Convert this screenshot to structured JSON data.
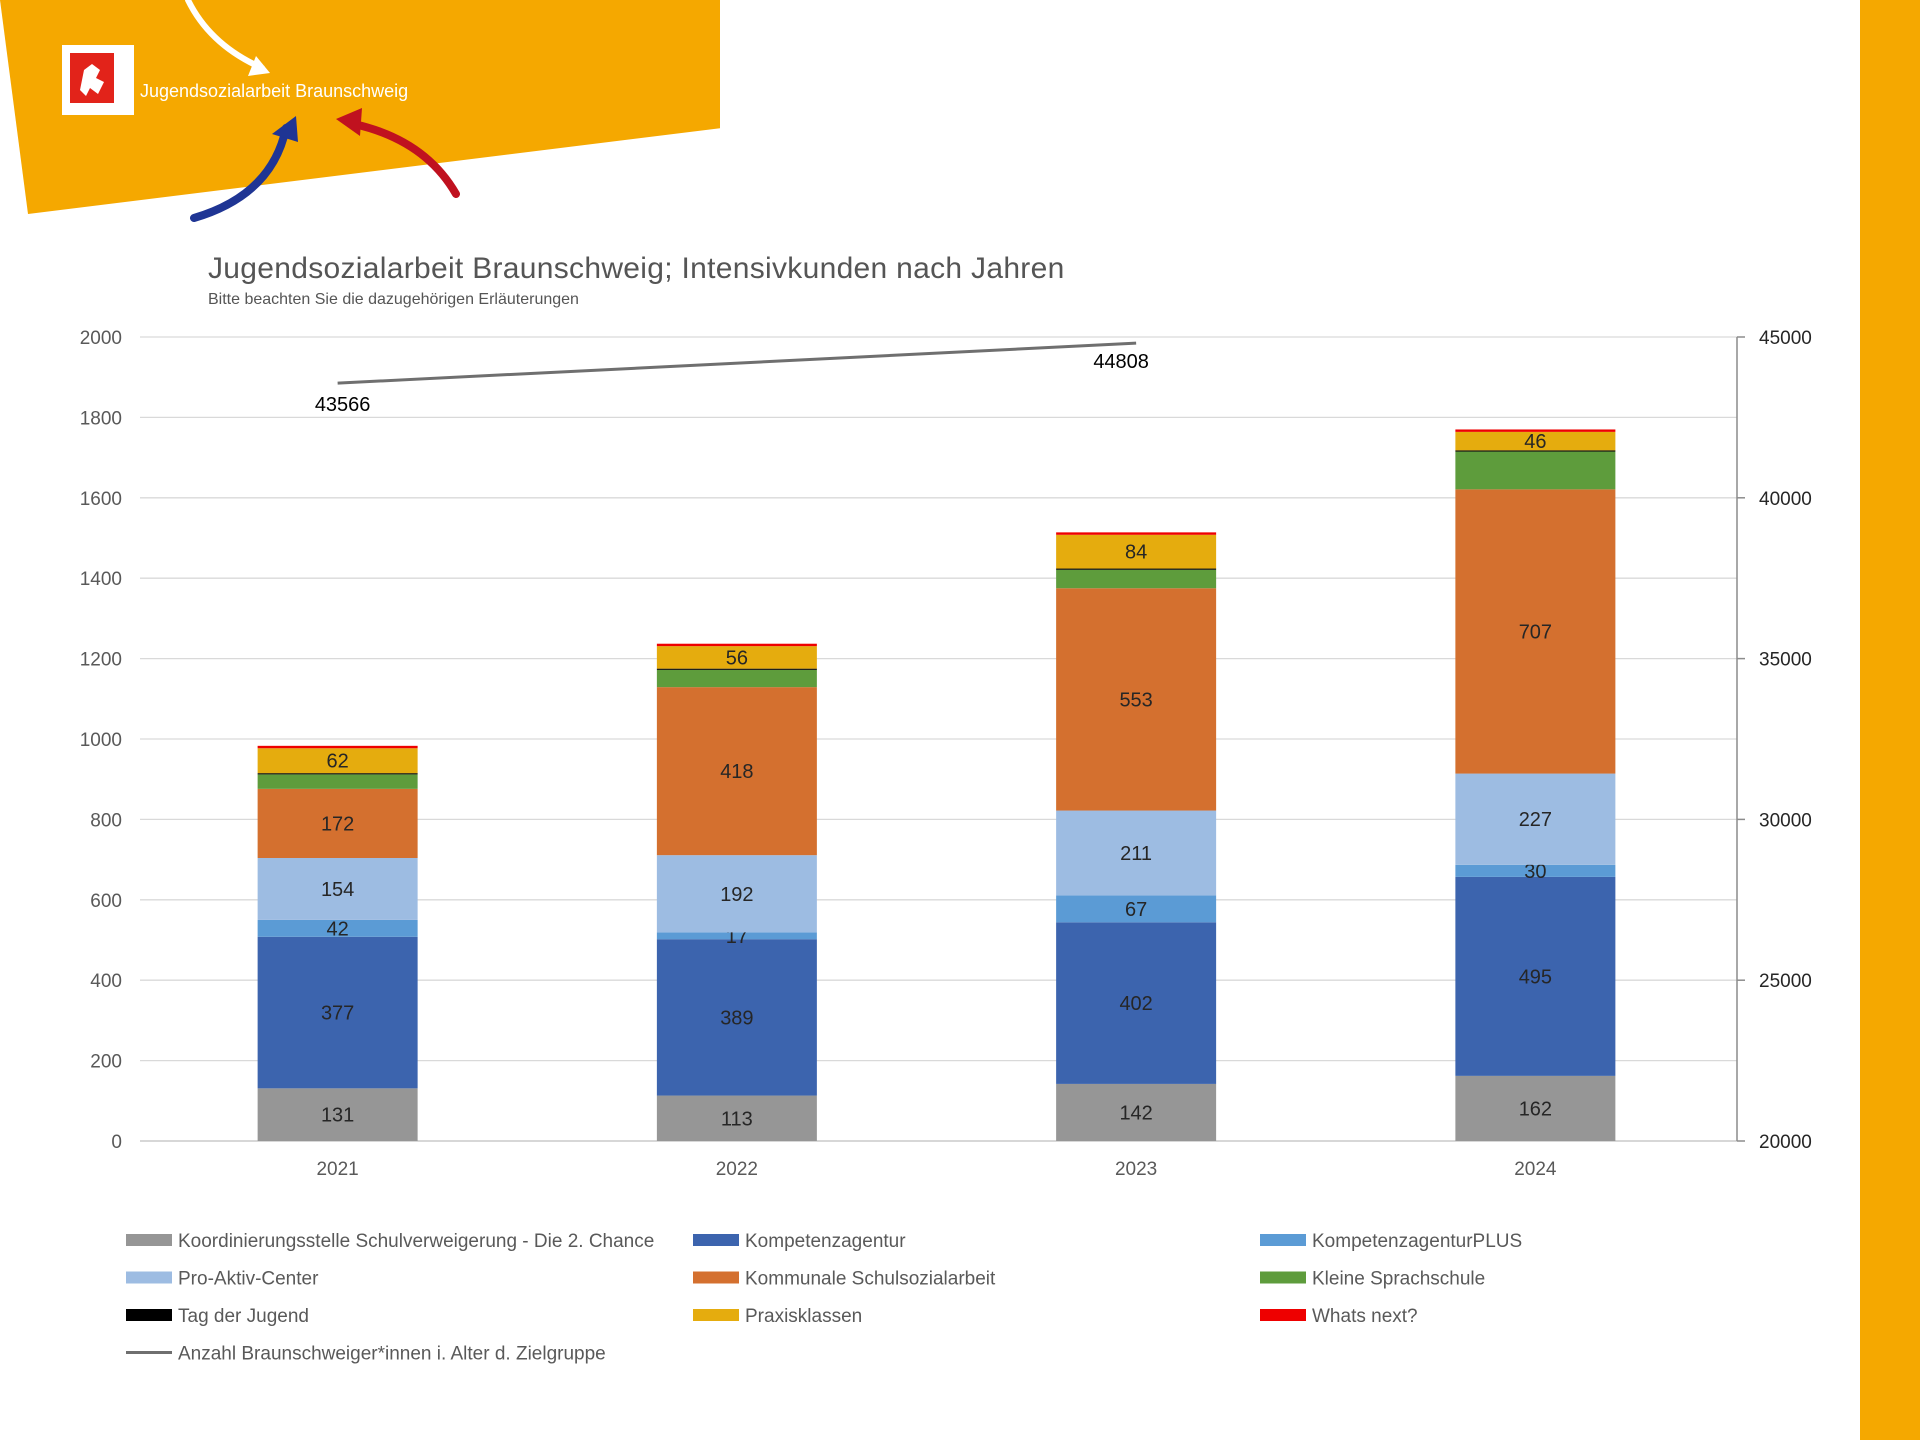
{
  "branding": {
    "logo_text": "Jugendsozialarbeit Braunschweig",
    "accent_color": "#F5A800",
    "logo_red": "#E2231A"
  },
  "chart_data": {
    "type": "bar",
    "title": "Jugendsozialarbeit Braunschweig; Intensivkunden nach Jahren",
    "subtitle": "Bitte beachten Sie die dazugehörigen Erläuterungen",
    "categories": [
      "2021",
      "2022",
      "2023",
      "2024"
    ],
    "ylim": [
      0,
      2000
    ],
    "y_ticks": [
      0,
      200,
      400,
      600,
      800,
      1000,
      1200,
      1400,
      1600,
      1800,
      2000
    ],
    "y2lim": [
      20000,
      45000
    ],
    "y2_ticks": [
      20000,
      25000,
      30000,
      35000,
      40000,
      45000
    ],
    "grid": true,
    "legend_position": "bottom",
    "series": [
      {
        "name": "Koordinierungsstelle Schulverweigerung - Die 2. Chance",
        "color": "#969696",
        "values": [
          131,
          113,
          142,
          162
        ],
        "labels": [
          "131",
          "113",
          "142",
          "162"
        ]
      },
      {
        "name": "Kompetenzagentur",
        "color": "#3C64AE",
        "values": [
          377,
          389,
          402,
          495
        ],
        "labels": [
          "377",
          "389",
          "402",
          "495"
        ]
      },
      {
        "name": "KompetenzagenturPLUS",
        "color": "#5B9BD5",
        "values": [
          42,
          17,
          67,
          30
        ],
        "labels": [
          "42",
          "17",
          "67",
          "30"
        ]
      },
      {
        "name": "Pro-Aktiv-Center",
        "color": "#9DBCE2",
        "values": [
          154,
          192,
          211,
          227
        ],
        "labels": [
          "154",
          "192",
          "211",
          "227"
        ]
      },
      {
        "name": "Kommunale Schulsozialarbeit",
        "color": "#D4702F",
        "values": [
          172,
          418,
          553,
          707
        ],
        "labels": [
          "172",
          "418",
          "553",
          "707"
        ]
      },
      {
        "name": "Kleine Sprachschule",
        "color": "#5E9C3C",
        "values": [
          36,
          43,
          46,
          94
        ],
        "labels": [
          "",
          "",
          "",
          ""
        ]
      },
      {
        "name": "Tag der Jugend",
        "color": "#000000",
        "values": [
          3,
          3,
          3,
          3
        ],
        "labels": [
          "",
          "",
          "",
          ""
        ]
      },
      {
        "name": "Praxisklassen",
        "color": "#E5AC0E",
        "values": [
          62,
          56,
          84,
          46
        ],
        "labels": [
          "62",
          "56",
          "84",
          "46"
        ]
      },
      {
        "name": "Whats next?",
        "color": "#EE0000",
        "values": [
          6,
          6,
          6,
          6
        ],
        "labels": [
          "",
          "",
          "",
          ""
        ]
      }
    ],
    "line_series": {
      "name": "Anzahl Braunschweiger*innen i. Alter d. Zielgruppe",
      "color": "#6F6F6F",
      "axis": "secondary",
      "values": [
        43566,
        null,
        44808,
        null
      ],
      "labels": [
        "43566",
        "",
        "44808",
        ""
      ]
    }
  }
}
